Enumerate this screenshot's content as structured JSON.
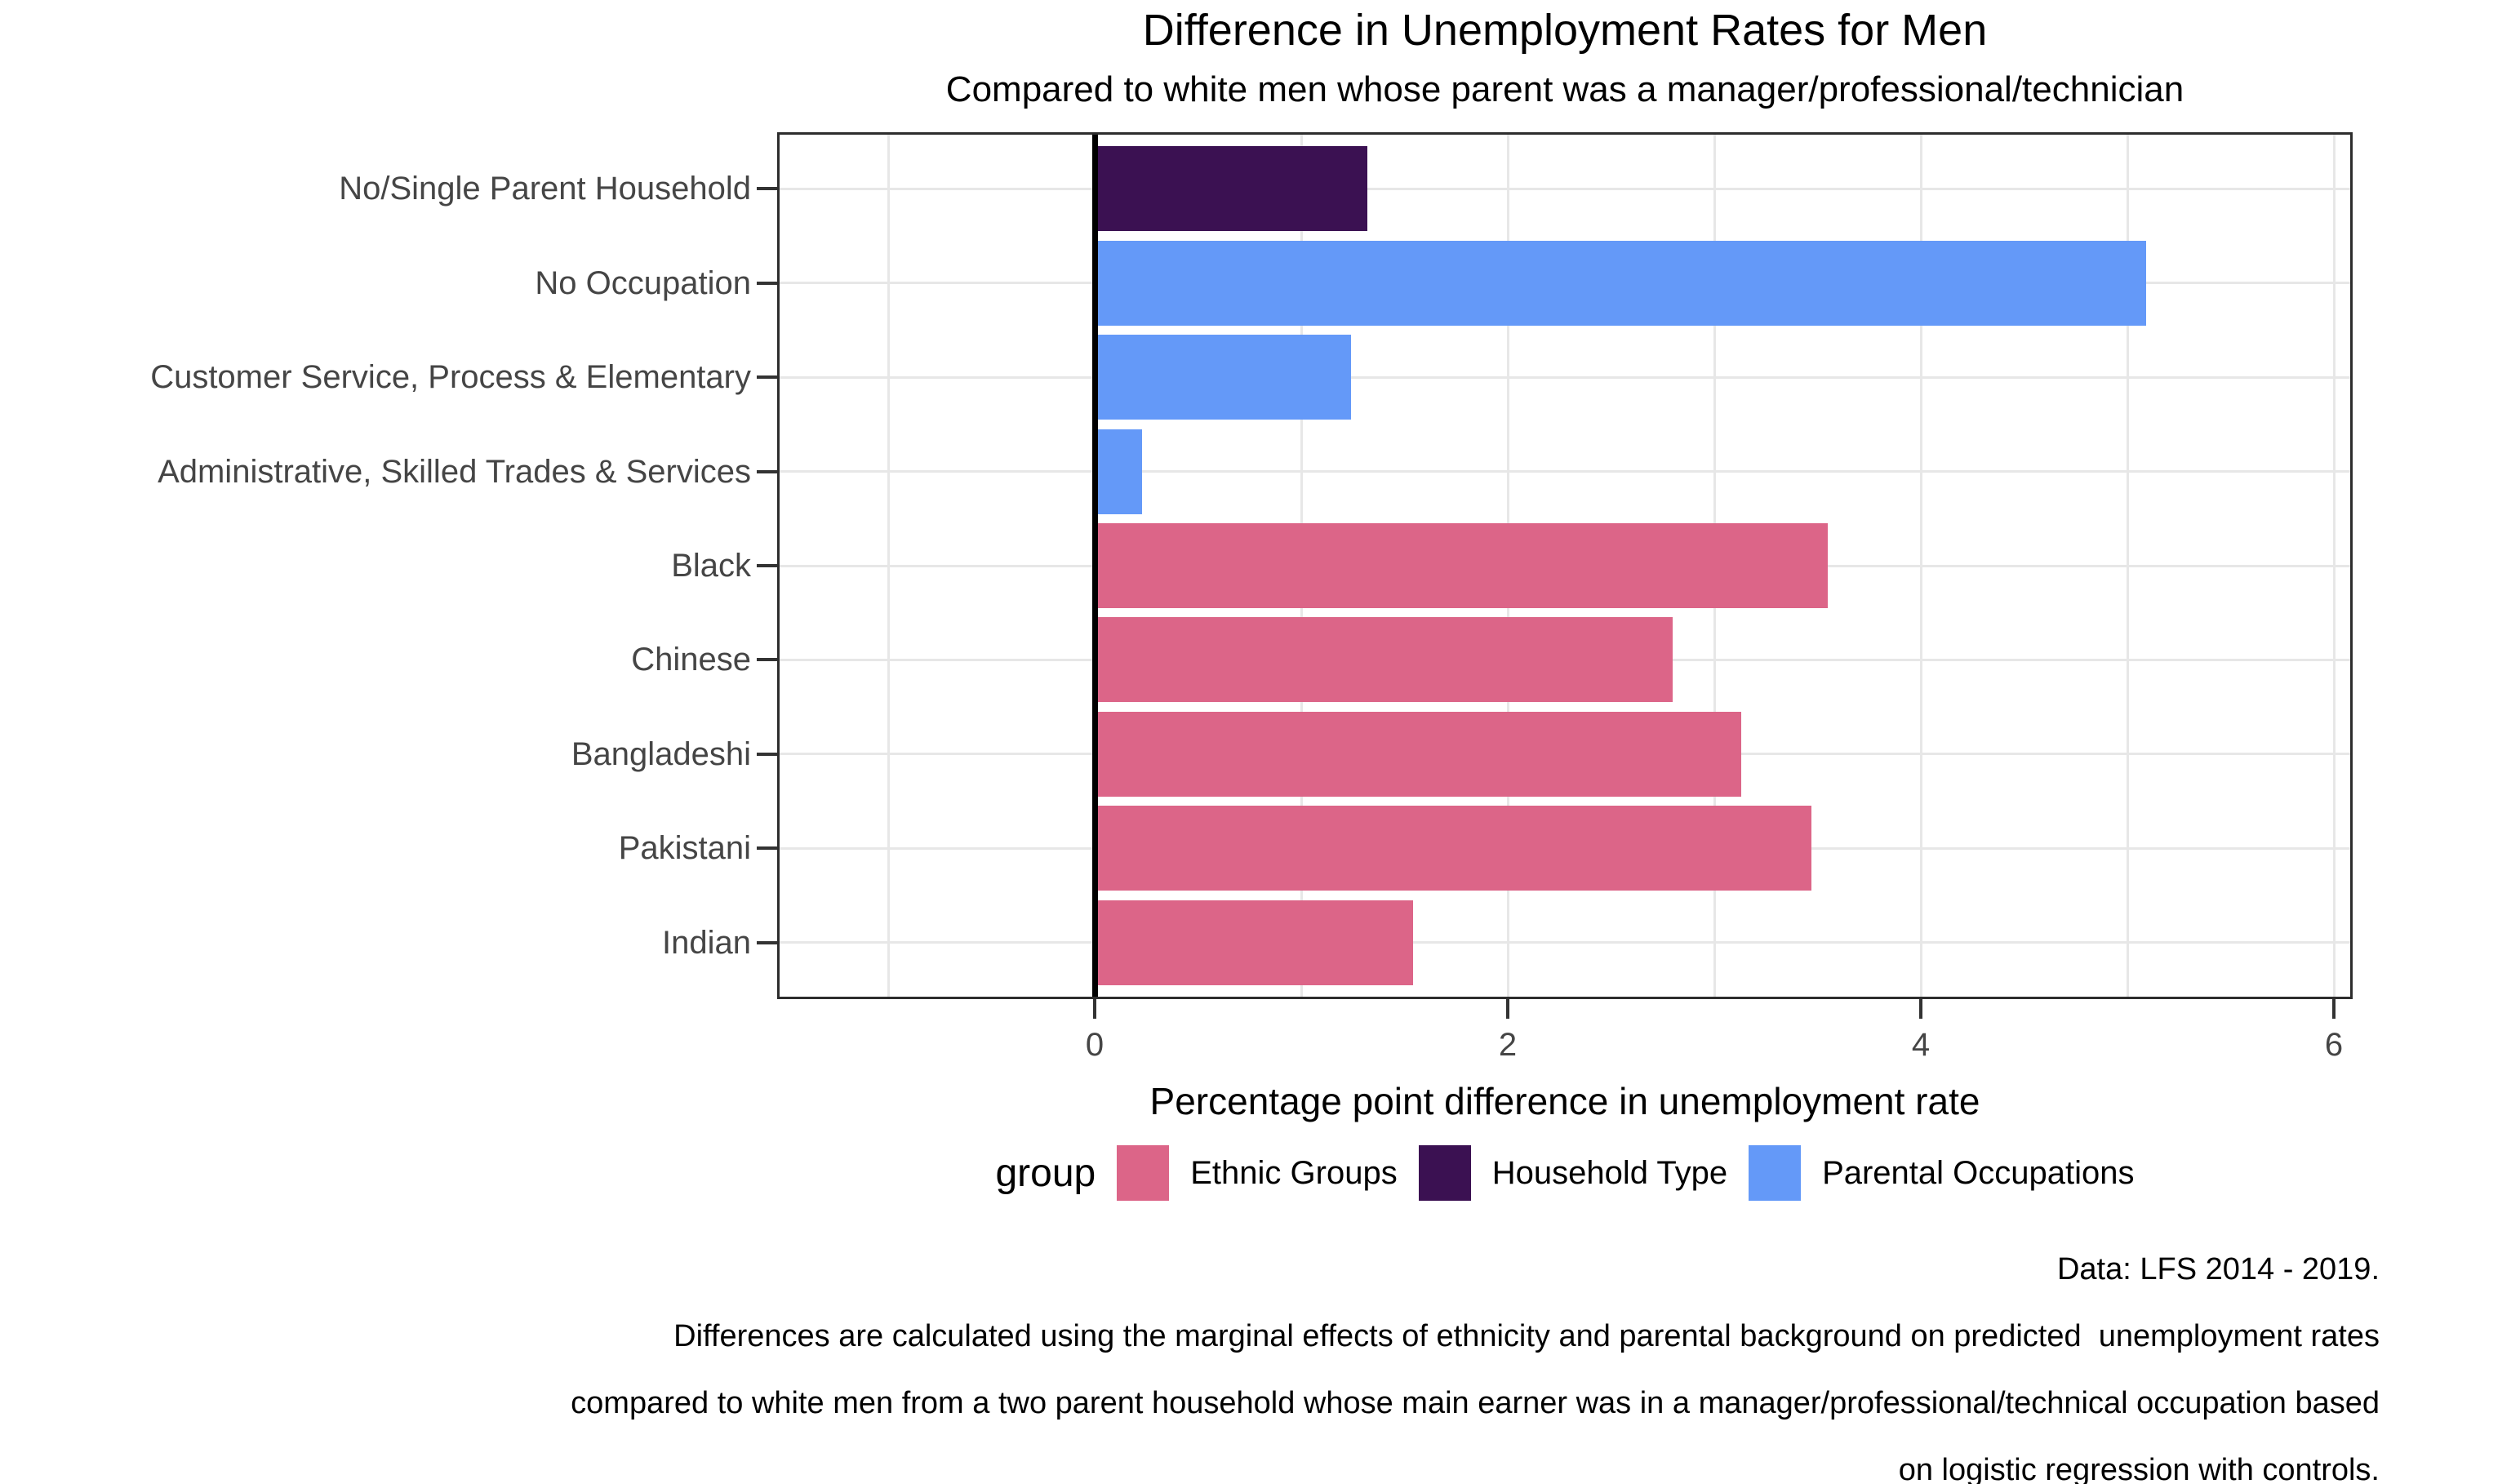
{
  "title": "Difference in Unemployment Rates for Men",
  "subtitle": "Compared to white men whose parent was a manager/professional/technician",
  "chart_data": {
    "type": "bar",
    "orientation": "horizontal",
    "categories": [
      "No/Single Parent Household",
      "No Occupation",
      "Customer Service, Process & Elementary",
      "Administrative, Skilled Trades & Services",
      "Black",
      "Chinese",
      "Bangladeshi",
      "Pakistani",
      "Indian"
    ],
    "values": [
      1.32,
      5.09,
      1.24,
      0.23,
      3.55,
      2.8,
      3.13,
      3.47,
      1.54
    ],
    "bar_groups": [
      "Household Type",
      "Parental Occupations",
      "Parental Occupations",
      "Parental Occupations",
      "Ethnic Groups",
      "Ethnic Groups",
      "Ethnic Groups",
      "Ethnic Groups",
      "Ethnic Groups"
    ],
    "group_colors": {
      "Ethnic Groups": "#DC6588",
      "Household Type": "#3B1152",
      "Parental Occupations": "#6499F8"
    },
    "xlabel": "Percentage point difference in unemployment rate",
    "x_ticks": [
      0,
      2,
      4,
      6
    ],
    "x_tick_labels": [
      "0",
      "2",
      "4",
      "6"
    ],
    "x_major_gridlines": [
      2,
      4,
      6
    ],
    "x_minor_gridlines": [
      -1,
      1,
      3,
      5
    ],
    "xlim": [
      -1.54,
      6.09
    ],
    "grid": true,
    "zero_line": true,
    "legend_position": "bottom",
    "legend": {
      "title": "group",
      "entries": [
        {
          "label": "Ethnic Groups",
          "color": "#DC6588"
        },
        {
          "label": "Household Type",
          "color": "#3B1152"
        },
        {
          "label": "Parental Occupations",
          "color": "#6499F8"
        }
      ]
    },
    "colors": {
      "gridline": "#e7e7e7",
      "axis_text": "#454545",
      "tick_mark": "#333333",
      "panel_border": "#2d2d2d",
      "zero_line": "#000000",
      "background": "#ffffff"
    }
  },
  "caption": {
    "lines": [
      "Data: LFS 2014 - 2019.",
      "Differences are calculated using the marginal effects of ethnicity and parental background on predicted  unemployment rates",
      "compared to white men from a two parent household whose main earner was in a manager/professional/technical occupation based",
      "on logistic regression with controls."
    ]
  }
}
